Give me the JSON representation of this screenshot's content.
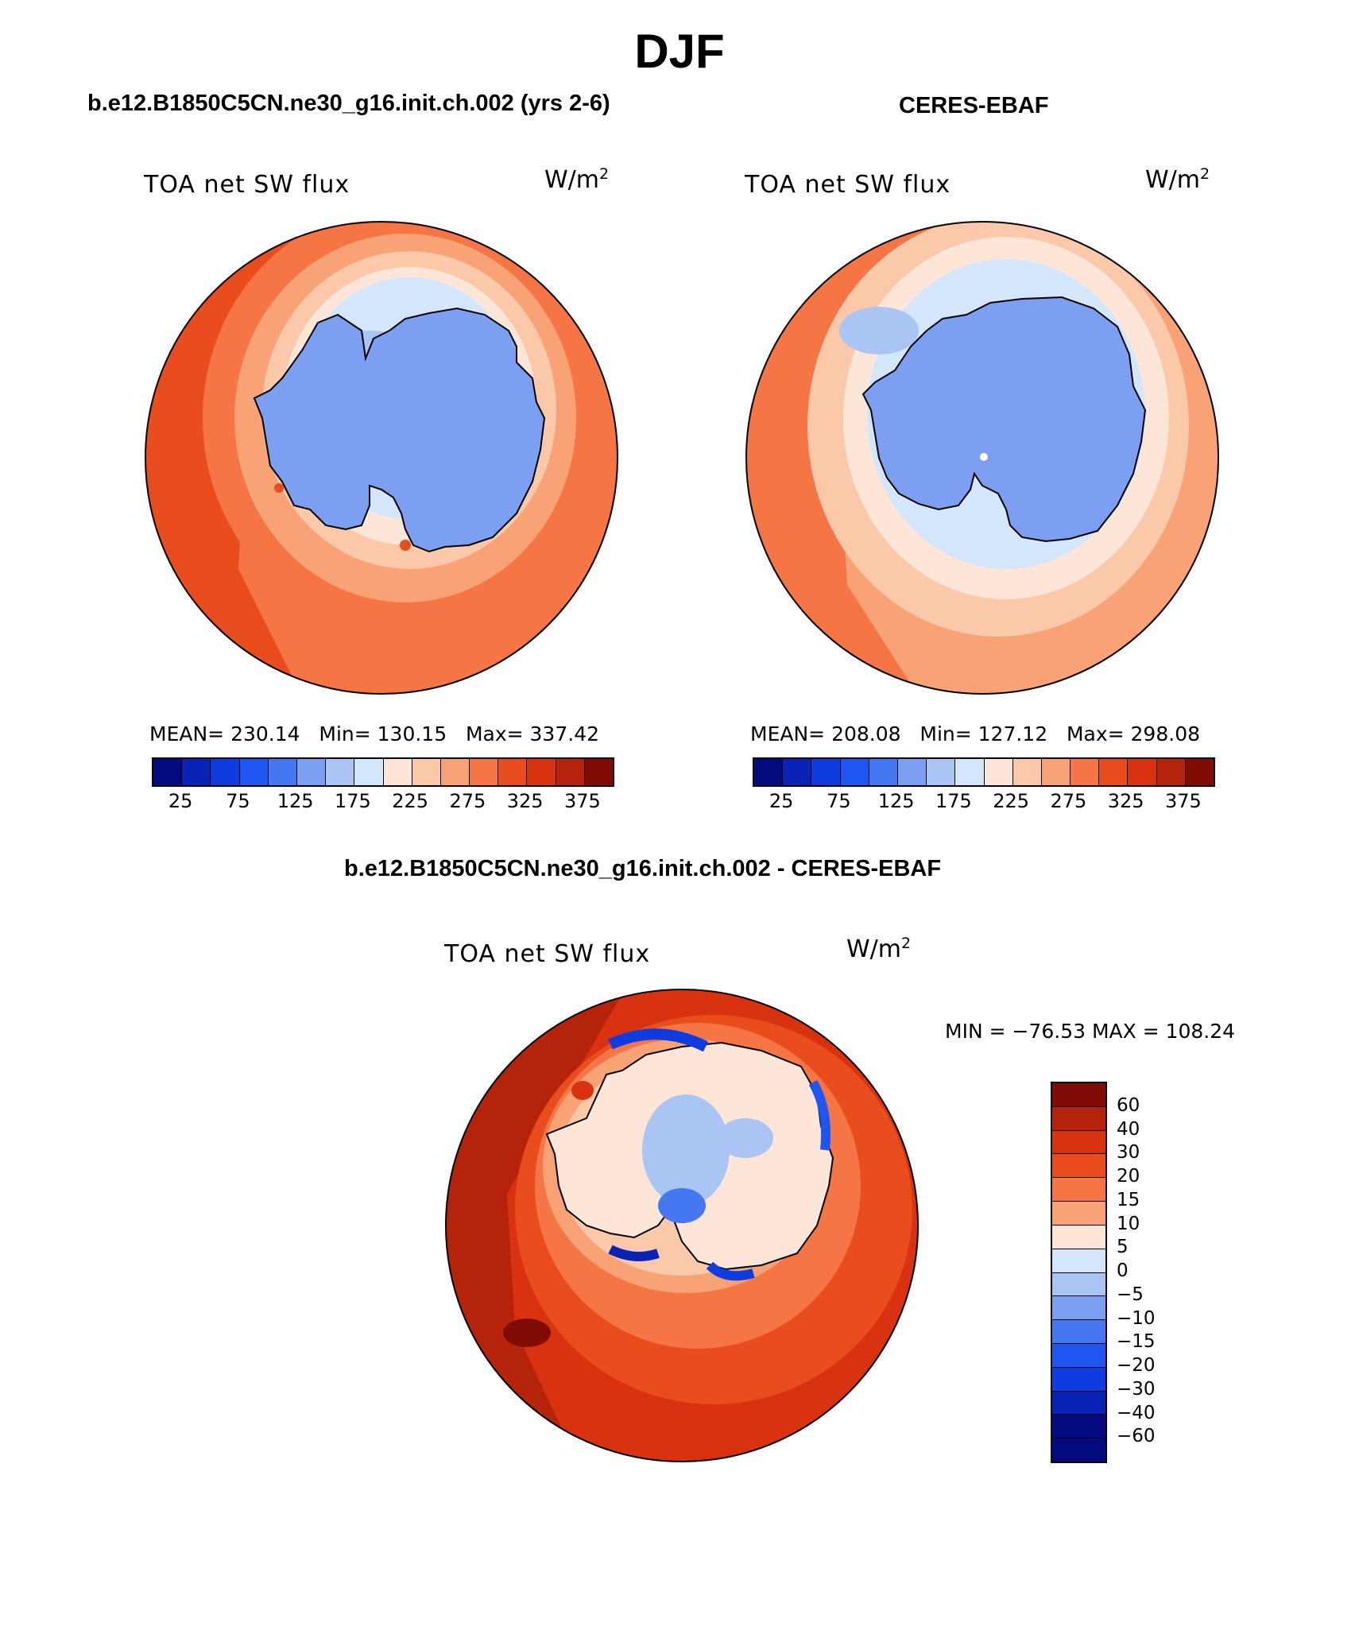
{
  "title": "DJF",
  "panels": {
    "model": {
      "title": "b.e12.B1850C5CN.ne30_g16.init.ch.002 (yrs 2-6)",
      "variable": "TOA net SW flux",
      "unit_base": "W/m",
      "unit_exp": "2",
      "stats": "MEAN= 230.14   Min= 130.15   Max= 337.42"
    },
    "obs": {
      "title": "CERES-EBAF",
      "variable": "TOA net SW flux",
      "unit_base": "W/m",
      "unit_exp": "2",
      "stats": "MEAN= 208.08   Min= 127.12   Max= 298.08"
    },
    "diff": {
      "title": "b.e12.B1850C5CN.ne30_g16.init.ch.002 - CERES-EBAF",
      "variable": "TOA net SW flux",
      "unit_base": "W/m",
      "unit_exp": "2",
      "stats": "MIN = −76.53 MAX = 108.24"
    }
  },
  "colorbar_abs": {
    "colors": [
      "#030a7e",
      "#0a23b7",
      "#0f3ce0",
      "#1f55f0",
      "#4677f3",
      "#7d9ff2",
      "#aac4f4",
      "#d4e6fb",
      "#fde6d8",
      "#fbc9aa",
      "#f8a276",
      "#f57544",
      "#ea4d1d",
      "#d93211",
      "#b5230b",
      "#800c05"
    ],
    "labels": [
      "25",
      "75",
      "125",
      "175",
      "225",
      "275",
      "325",
      "375"
    ]
  },
  "colorbar_diff": {
    "colors": [
      "#800c05",
      "#b5230b",
      "#d93211",
      "#ea4d1d",
      "#f57544",
      "#f8a276",
      "#fde6d8",
      "#d4e6fb",
      "#aac4f4",
      "#7d9ff2",
      "#4677f3",
      "#1f55f0",
      "#0f3ce0",
      "#0a23b7",
      "#030a7e",
      "#030a7e"
    ],
    "labels": [
      "60",
      "40",
      "30",
      "20",
      "15",
      "10",
      "5",
      "0",
      "−5",
      "−10",
      "−15",
      "−20",
      "−30",
      "−40",
      "−60"
    ]
  }
}
